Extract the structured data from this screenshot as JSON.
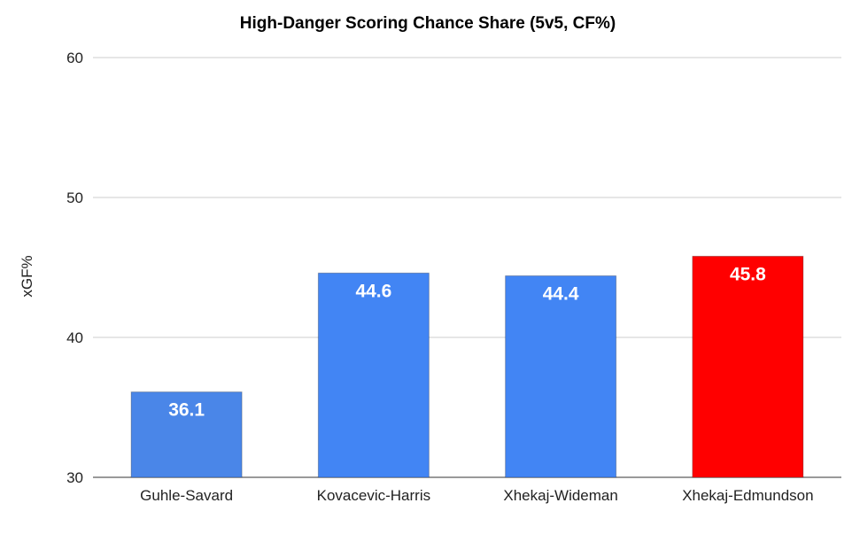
{
  "chart_data": {
    "type": "bar",
    "title": "High-Danger Scoring Chance Share (5v5, CF%)",
    "xlabel": "",
    "ylabel": "xGF%",
    "ylim": [
      30,
      60
    ],
    "yticks": [
      30,
      40,
      50,
      60
    ],
    "categories": [
      "Guhle-Savard",
      "Kovacevic-Harris",
      "Xhekaj-Wideman",
      "Xhekaj-Edmundson"
    ],
    "values": [
      36.1,
      44.6,
      44.4,
      45.8
    ],
    "value_labels": [
      "36.1",
      "44.6",
      "44.4",
      "45.8"
    ],
    "colors": [
      "#4a86e8",
      "#4285f4",
      "#4285f4",
      "#ff0000"
    ],
    "grid": true,
    "legend": "none"
  }
}
